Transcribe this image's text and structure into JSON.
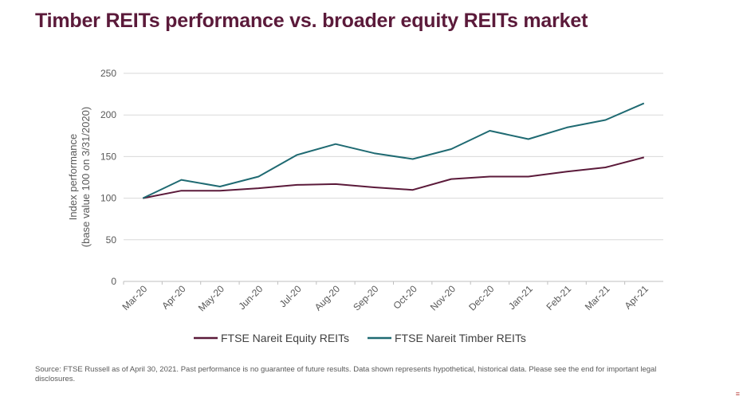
{
  "header": {
    "title": "Timber REITs performance vs. broader equity REITs market"
  },
  "chart_data": {
    "type": "line",
    "categories": [
      "Mar-20",
      "Apr-20",
      "May-20",
      "Jun-20",
      "Jul-20",
      "Aug-20",
      "Sep-20",
      "Oct-20",
      "Nov-20",
      "Dec-20",
      "Jan-21",
      "Feb-21",
      "Mar-21",
      "Apr-21"
    ],
    "series": [
      {
        "name": "FTSE Nareit Equity REITs",
        "color": "#5b1a3a",
        "values": [
          100,
          109,
          109,
          112,
          116,
          117,
          113,
          110,
          123,
          126,
          126,
          132,
          137,
          149
        ]
      },
      {
        "name": "FTSE Nareit Timber REITs",
        "color": "#1f6a72",
        "values": [
          100,
          122,
          114,
          126,
          152,
          165,
          154,
          147,
          159,
          181,
          171,
          185,
          194,
          214
        ]
      }
    ],
    "ylabel_line1": "Index performance",
    "ylabel_line2": "(base value 100 on 3/31/2020)",
    "ylim": [
      0,
      250
    ],
    "yticks": [
      "0",
      "50",
      "100",
      "150",
      "200",
      "250"
    ],
    "grid": true,
    "legend_position": "bottom"
  },
  "footer": {
    "source": "Source: FTSE Russell as of April 30, 2021.  Past performance is no guarantee of future results. Data shown represents hypothetical, historical data. Please see the end for important legal disclosures."
  },
  "corner_mark": "≡"
}
